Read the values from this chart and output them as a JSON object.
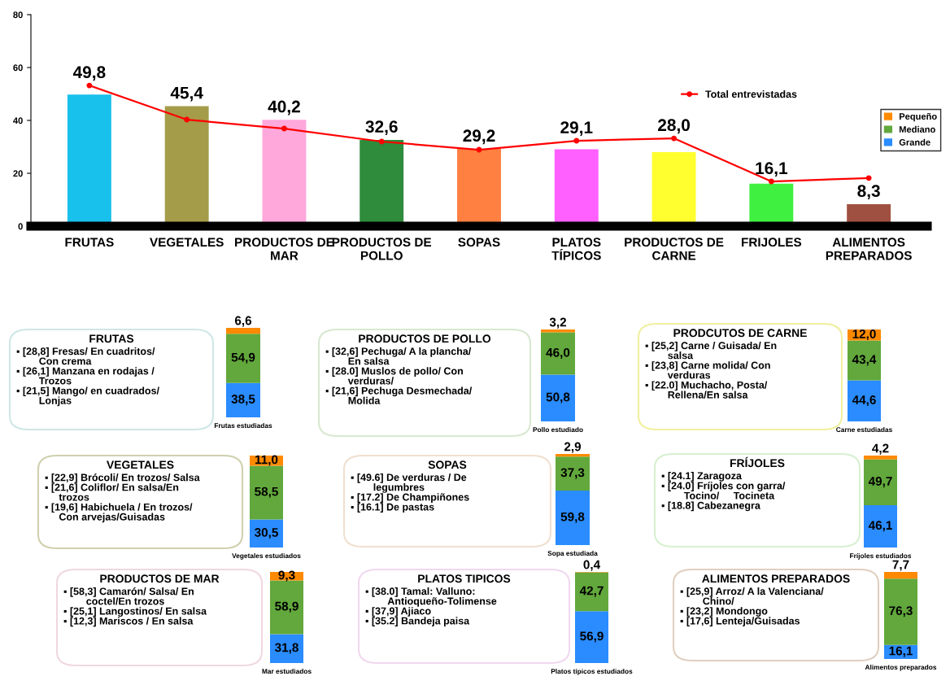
{
  "chart_data": [
    {
      "type": "bar",
      "categories": [
        "FRUTAS",
        "VEGETALES",
        "PRODUCTOS DE\nMAR",
        "PRODUCTOS DE\nPOLLO",
        "SOPAS",
        "PLATOS\nTÍPICOS",
        "PRODUCTOS DE\nCARNE",
        "FRIJOLES",
        "ALIMENTOS\nPREPARADOS"
      ],
      "series": [
        {
          "type": "bar",
          "colors": [
            "#18c0ec",
            "#a49c48",
            "#ffa8dc",
            "#2e8c3c",
            "#ff8040",
            "#ff60ff",
            "#ffff30",
            "#40f040",
            "#a05040"
          ],
          "values": [
            49.8,
            45.4,
            40.2,
            32.6,
            29.2,
            29.1,
            28.0,
            16.1,
            8.3
          ],
          "value_labels": [
            "49,8",
            "45,4",
            "40,2",
            "32,6",
            "29,2",
            "29,1",
            "28,0",
            "16,1",
            "8,3"
          ]
        },
        {
          "type": "line",
          "name": "Total entrevistadas",
          "color": "#ff0000",
          "values": [
            53.2,
            40.3,
            36.9,
            32.0,
            28.9,
            32.3,
            33.2,
            16.9,
            18.2
          ]
        }
      ],
      "marker": "circle",
      "ylim": [
        0,
        80
      ],
      "yticks": [
        0,
        20,
        40,
        60,
        80
      ],
      "legend": "right"
    },
    {
      "type": "bar",
      "stacked": true,
      "categories": [
        "Frutas estudiadas"
      ],
      "ylim": [
        0,
        100
      ],
      "tick_labels": "x",
      "legend": "right",
      "annotations": [
        "FRUTAS",
        "▪ [28,8] Fresas/ En cuadritos/\n        Con crema",
        "▪ [26,1] Manzana en rodajas /\n        Trozos",
        "▪ [21,5] Mango/ en cuadrados/\n        Lonjas"
      ],
      "series": [
        {
          "name": "Grande",
          "color": "#2a8cff",
          "values": [
            38.5
          ],
          "value_labels": [
            "38,5"
          ]
        },
        {
          "name": "Mediano",
          "color": "#62a83c",
          "values": [
            54.9
          ],
          "value_labels": [
            "54,9"
          ]
        },
        {
          "name": "Pequeño",
          "color": "#ff8a00",
          "values": [
            6.6
          ],
          "value_labels": [
            "6,6"
          ]
        }
      ]
    },
    {
      "type": "bar",
      "stacked": true,
      "categories": [
        "Pollo estudiado"
      ],
      "ylim": [
        0,
        100
      ],
      "tick_labels": "x",
      "annotations": [
        "PRODUCTOS DE POLLO",
        "▪ [32,6] Pechuga/ A la plancha/\n        En salsa",
        "▪ [28.0] Muslos de pollo/ Con\n        verduras/",
        "▪ [21,6] Pechuga Desmechada/\n        Molida"
      ],
      "series": [
        {
          "color": "#2a8cff",
          "values": [
            50.8
          ],
          "value_labels": [
            "50,8"
          ]
        },
        {
          "color": "#62a83c",
          "values": [
            46.0
          ],
          "value_labels": [
            "46,0"
          ]
        },
        {
          "color": "#ff8a00",
          "values": [
            3.2
          ],
          "value_labels": [
            "3,2"
          ]
        }
      ]
    },
    {
      "type": "bar",
      "stacked": true,
      "categories": [
        "Carne estudiadas"
      ],
      "ylim": [
        0,
        100
      ],
      "tick_labels": "x",
      "annotations": [
        "PRODCUTOS DE CARNE",
        "▪ [25,2] Carne / Guisada/ En\n        salsa",
        "▪ [23,8] Carne molida/ Con\n        verduras",
        "▪ [22.0] Muchacho, Posta/\n        Rellena/En salsa"
      ],
      "series": [
        {
          "color": "#2a8cff",
          "values": [
            44.6
          ],
          "value_labels": [
            "44,6"
          ]
        },
        {
          "color": "#62a83c",
          "values": [
            43.4
          ],
          "value_labels": [
            "43,4"
          ]
        },
        {
          "color": "#ff8a00",
          "values": [
            12.0
          ],
          "value_labels": [
            "12,0"
          ]
        }
      ]
    },
    {
      "type": "bar",
      "stacked": true,
      "categories": [
        "Vegetales estudiados"
      ],
      "ylim": [
        0,
        100
      ],
      "tick_labels": "x",
      "annotations": [
        "VEGETALES",
        "▪ [22,9] Brócoli/ En trozos/ Salsa",
        "▪ [21,6] Coliflor/ En salsa/En\n     trozos",
        "▪ [19,6] Habichuela / En trozos/\n     Con arvejas/Guisadas"
      ],
      "series": [
        {
          "color": "#2a8cff",
          "values": [
            30.5
          ],
          "value_labels": [
            "30,5"
          ]
        },
        {
          "color": "#62a83c",
          "values": [
            58.5
          ],
          "value_labels": [
            "58,5"
          ]
        },
        {
          "color": "#ff8a00",
          "values": [
            11.0
          ],
          "value_labels": [
            "11,0"
          ]
        }
      ]
    },
    {
      "type": "bar",
      "stacked": true,
      "categories": [
        "Sopa estudiada"
      ],
      "ylim": [
        0,
        100
      ],
      "tick_labels": "x",
      "annotations": [
        "SOPAS",
        "▪ [49.6] De verduras / De\n        legumbres",
        "▪ [17.2] De Champiñones",
        "▪ [16.1] De pastas"
      ],
      "series": [
        {
          "color": "#2a8cff",
          "values": [
            59.8
          ],
          "value_labels": [
            "59,8"
          ]
        },
        {
          "color": "#62a83c",
          "values": [
            37.3
          ],
          "value_labels": [
            "37,3"
          ]
        },
        {
          "color": "#ff8a00",
          "values": [
            2.9
          ],
          "value_labels": [
            "2,9"
          ]
        }
      ]
    },
    {
      "type": "bar",
      "stacked": true,
      "categories": [
        "Fríjoles estudiados"
      ],
      "ylim": [
        0,
        100
      ],
      "tick_labels": "x",
      "annotations": [
        "FRÍJOLES",
        "▪ [24.1] Zaragoza",
        "▪ [24.0] Fríjoles con garra/\n        Tocino/     Tocineta",
        "▪ [18.8] Cabezanegra"
      ],
      "series": [
        {
          "color": "#2a8cff",
          "values": [
            46.1
          ],
          "value_labels": [
            "46,1"
          ]
        },
        {
          "color": "#62a83c",
          "values": [
            49.7
          ],
          "value_labels": [
            "49,7"
          ]
        },
        {
          "color": "#ff8a00",
          "values": [
            4.2
          ],
          "value_labels": [
            "4,2"
          ]
        }
      ]
    },
    {
      "type": "bar",
      "stacked": true,
      "categories": [
        "Mar estudiados"
      ],
      "ylim": [
        0,
        100
      ],
      "tick_labels": "x",
      "annotations": [
        "PRODUCTOS DE MAR",
        "▪ [58,3] Camarón/ Salsa/ En\n        coctel/En trozos",
        "▪ [25,1] Langostinos/ En salsa",
        "▪ [12,3] Mariscos / En salsa"
      ],
      "series": [
        {
          "color": "#2a8cff",
          "values": [
            31.8
          ],
          "value_labels": [
            "31,8"
          ]
        },
        {
          "color": "#62a83c",
          "values": [
            58.9
          ],
          "value_labels": [
            "58,9"
          ]
        },
        {
          "color": "#ff8a00",
          "values": [
            9.3
          ],
          "value_labels": [
            "9,3"
          ]
        }
      ]
    },
    {
      "type": "bar",
      "stacked": true,
      "categories": [
        "Platos típicos estudiados"
      ],
      "ylim": [
        0,
        100
      ],
      "tick_labels": "x",
      "annotations": [
        "PLATOS TIPICOS",
        "▪ [38.0] Tamal: Valluno:\n        Antioqueño-Tolimense",
        "▪ [37,9] Ajiaco",
        "▪ [35.2] Bandeja paisa"
      ],
      "series": [
        {
          "color": "#2a8cff",
          "values": [
            56.9
          ],
          "value_labels": [
            "56,9"
          ]
        },
        {
          "color": "#62a83c",
          "values": [
            42.7
          ],
          "value_labels": [
            "42,7"
          ]
        },
        {
          "color": "#ff8a00",
          "values": [
            0.4
          ],
          "value_labels": [
            "0,4"
          ]
        }
      ]
    },
    {
      "type": "bar",
      "stacked": true,
      "categories": [
        "Alimentos preparados"
      ],
      "ylim": [
        0,
        100
      ],
      "tick_labels": "x",
      "annotations": [
        "ALIMENTOS PREPARADOS",
        "▪ [25,9] Arroz/ A la Valenciana/\n        Chino/",
        "▪ [23,2] Mondongo",
        "▪ [17,6] Lenteja/Guisadas"
      ],
      "series": [
        {
          "color": "#2a8cff",
          "values": [
            16.1
          ],
          "value_labels": [
            "16,1"
          ]
        },
        {
          "color": "#62a83c",
          "values": [
            76.3
          ],
          "value_labels": [
            "76,3"
          ]
        },
        {
          "color": "#ff8a00",
          "values": [
            7.7
          ],
          "value_labels": [
            "7,7"
          ]
        }
      ]
    }
  ]
}
